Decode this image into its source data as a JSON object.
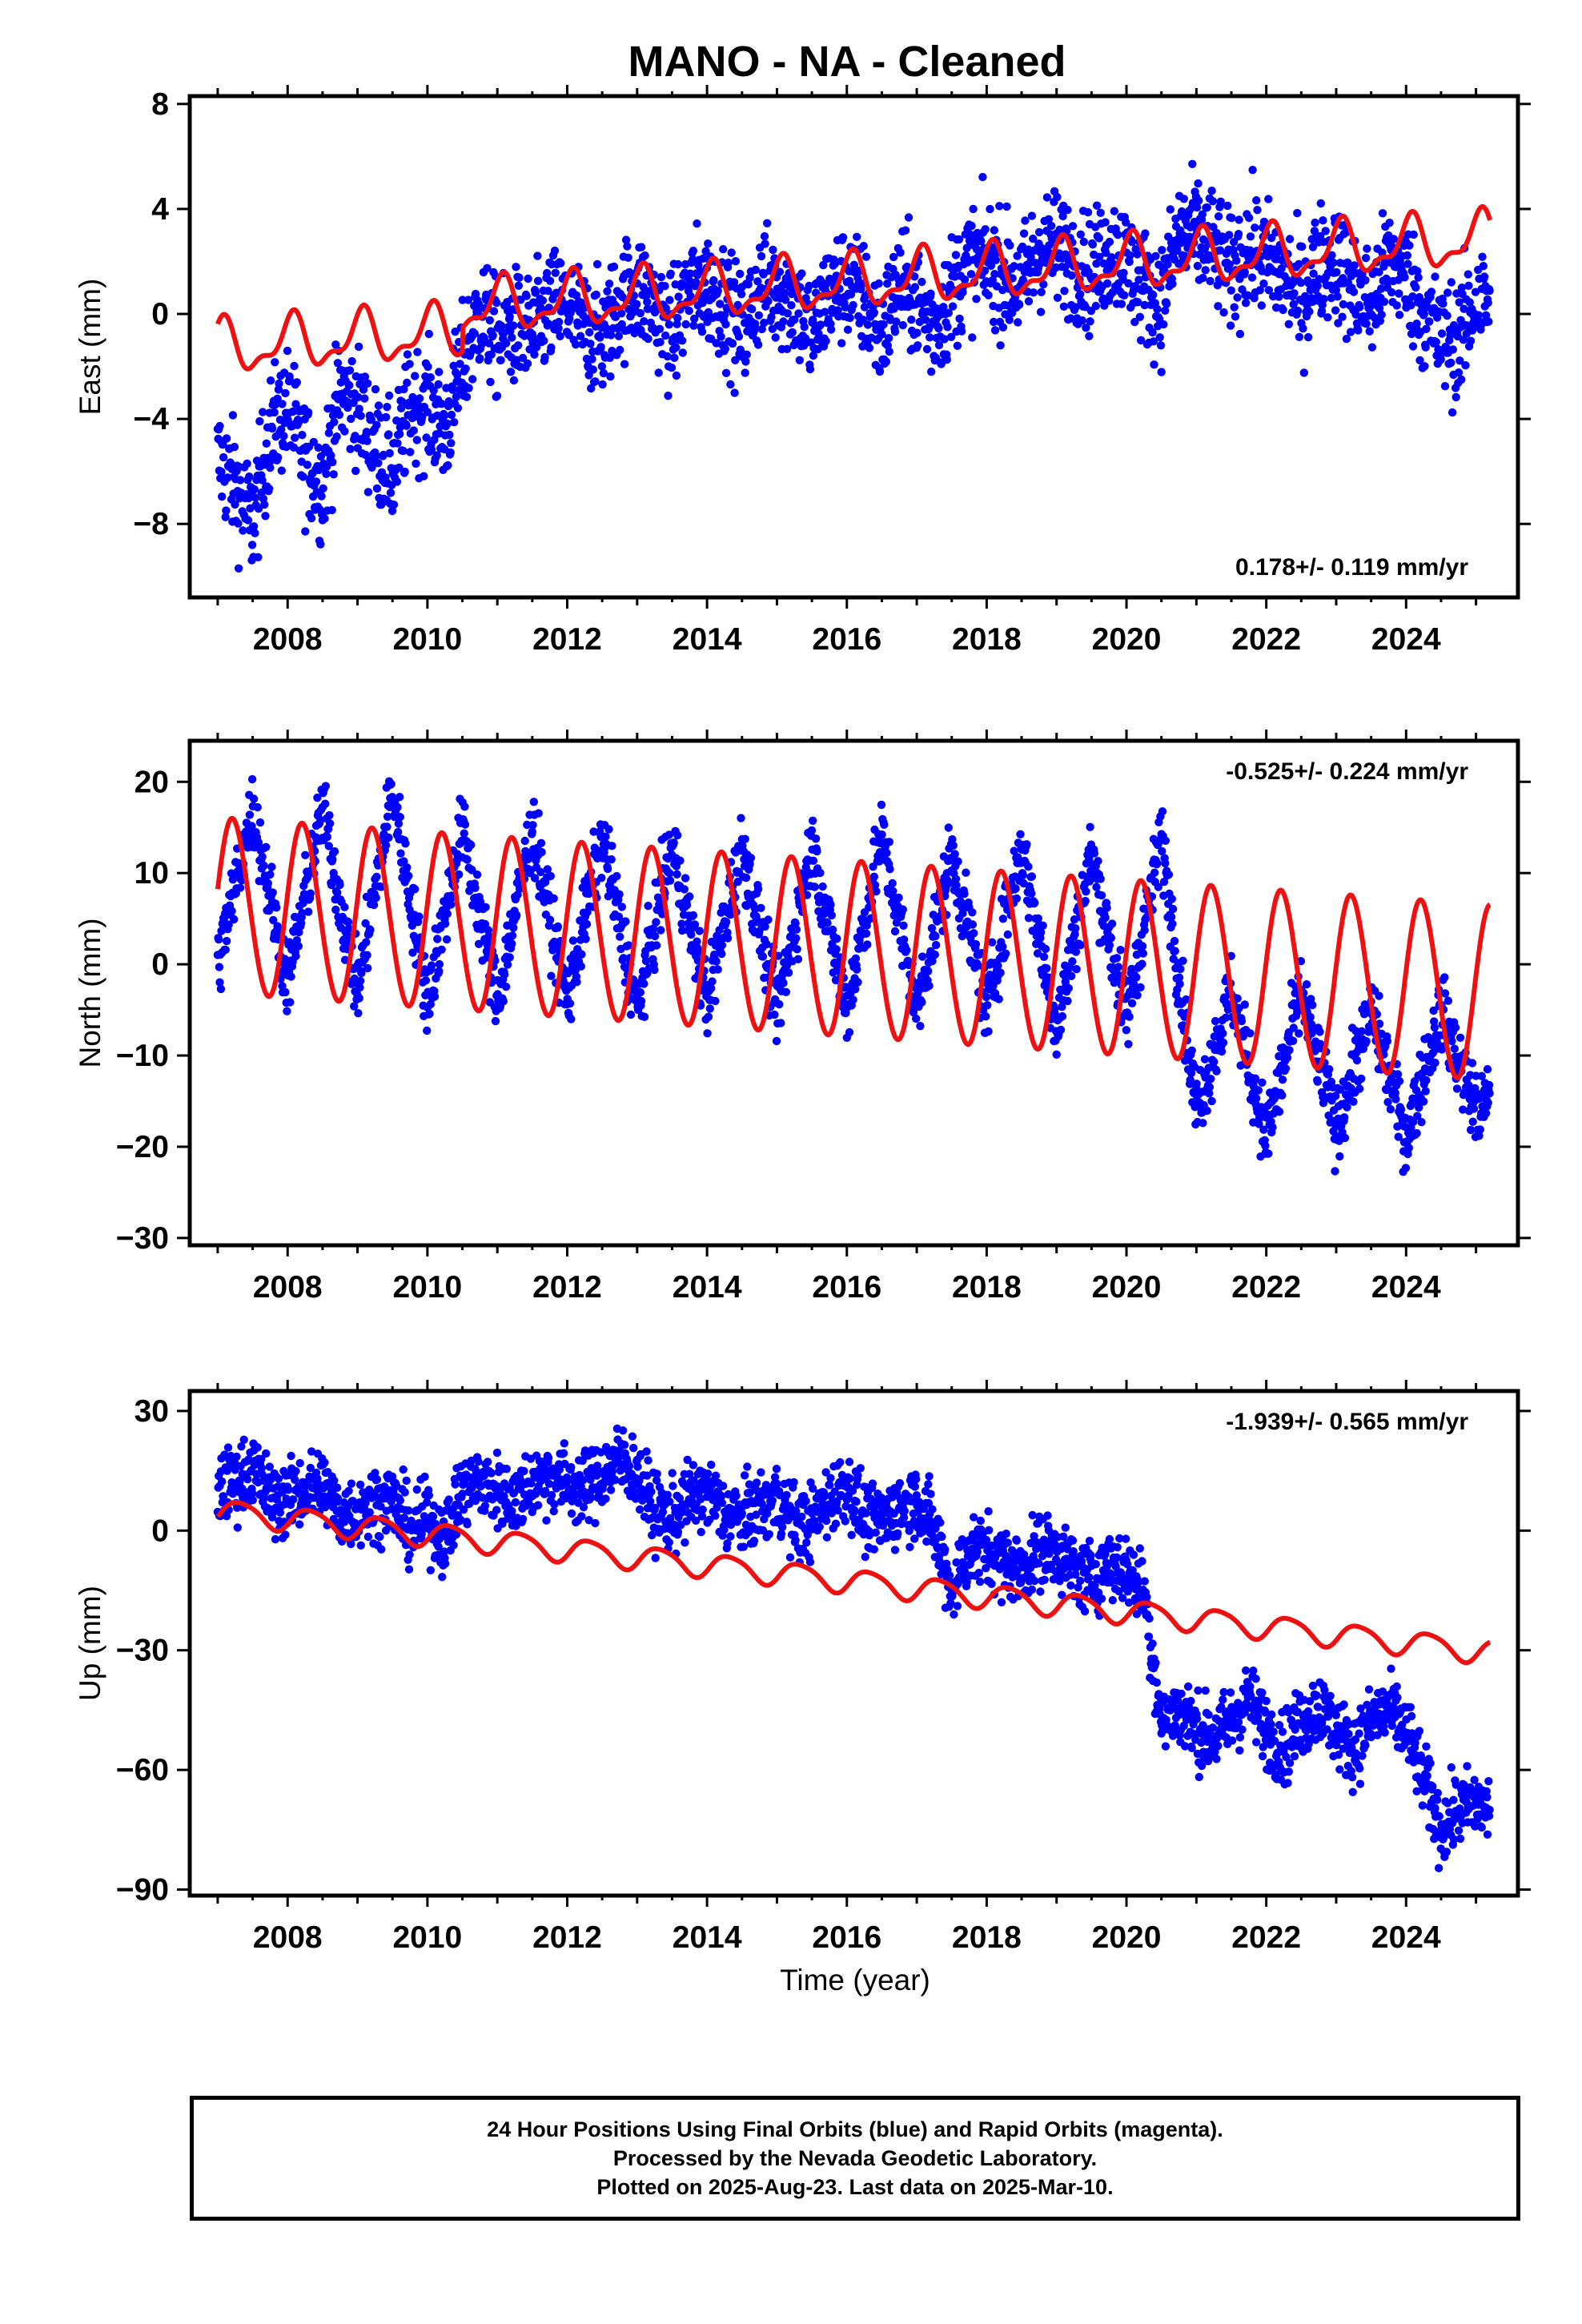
{
  "title": "MANO  - NA - Cleaned",
  "xlabel": "Time (year)",
  "colors": {
    "data": "#0000ff",
    "model": "#ee1111",
    "axis": "#000000"
  },
  "x_ticks": [
    2008,
    2010,
    2012,
    2014,
    2016,
    2018,
    2020,
    2022,
    2024
  ],
  "caption": [
    "24 Hour Positions Using Final Orbits (blue) and Rapid Orbits (magenta).",
    "Processed by the Nevada Geodetic Laboratory.",
    "Plotted on 2025-Aug-23. Last data on 2025-Mar-10."
  ],
  "chart_data": [
    {
      "type": "scatter",
      "panel": "east",
      "ylabel": "East (mm)",
      "ylim": [
        -10.8,
        8.3
      ],
      "xlim": [
        2006.6,
        2025.6
      ],
      "yticks": [
        -8,
        -4,
        0,
        4,
        8
      ],
      "rate_annotation": "0.178+/- 0.119 mm/yr",
      "annotation_position": "bottom-right",
      "series": [
        {
          "name": "Final Orbits (blue)",
          "type": "scatter",
          "x": [
            2007.0,
            2007.25,
            2007.5,
            2007.75,
            2008.0,
            2008.25,
            2008.5,
            2008.75,
            2009.0,
            2009.25,
            2009.5,
            2009.75,
            2010.0,
            2010.25,
            2010.5,
            2010.75,
            2011.0,
            2011.25,
            2011.5,
            2011.75,
            2012.0,
            2012.25,
            2012.5,
            2012.75,
            2013.0,
            2013.25,
            2013.5,
            2013.75,
            2014.0,
            2014.25,
            2014.5,
            2014.75,
            2015.0,
            2015.25,
            2015.5,
            2015.75,
            2016.0,
            2016.25,
            2016.5,
            2016.75,
            2017.0,
            2017.25,
            2017.5,
            2017.75,
            2018.0,
            2018.25,
            2018.5,
            2018.75,
            2019.0,
            2019.25,
            2019.5,
            2019.75,
            2020.0,
            2020.25,
            2020.5,
            2020.75,
            2021.0,
            2021.25,
            2021.5,
            2021.75,
            2022.0,
            2022.25,
            2022.5,
            2022.75,
            2023.0,
            2023.25,
            2023.5,
            2023.75,
            2024.0,
            2024.25,
            2024.5,
            2024.75,
            2025.0,
            2025.2
          ],
          "y": [
            -5.5,
            -6.5,
            -8.0,
            -4.5,
            -3.5,
            -5.5,
            -6.5,
            -3.0,
            -3.5,
            -5.0,
            -6.0,
            -3.5,
            -3.5,
            -4.5,
            -2.0,
            0.0,
            -1.0,
            -0.5,
            -0.8,
            0.2,
            0.3,
            -0.5,
            -1.0,
            0.5,
            1.0,
            0.3,
            -0.8,
            1.0,
            1.0,
            0.5,
            -0.8,
            1.0,
            1.0,
            0.5,
            -0.8,
            0.8,
            1.2,
            0.5,
            -0.8,
            1.2,
            0.5,
            -0.5,
            0.8,
            2.0,
            2.0,
            1.5,
            1.0,
            2.5,
            2.5,
            2.0,
            1.5,
            2.5,
            2.0,
            1.0,
            0.5,
            3.0,
            3.0,
            2.5,
            1.5,
            2.5,
            2.0,
            1.5,
            0.5,
            2.0,
            2.0,
            1.0,
            0.3,
            2.0,
            1.5,
            0.0,
            -1.0,
            -1.0,
            0.5,
            0.5
          ]
        },
        {
          "name": "Model fit",
          "type": "line",
          "model": {
            "t0": 2016,
            "offset": 0.3,
            "rate": 0.178,
            "annual": 0.9,
            "annual_phase": 1.2,
            "semiannual": 0.4,
            "semiannual_phase": 0.2,
            "steps": [
              {
                "t": 2010.5,
                "dy": 0.9
              }
            ]
          }
        }
      ]
    },
    {
      "type": "scatter",
      "panel": "north",
      "ylabel": "North (mm)",
      "ylim": [
        -30.8,
        24.5
      ],
      "xlim": [
        2006.6,
        2025.6
      ],
      "yticks": [
        -30,
        -20,
        -10,
        0,
        10,
        20
      ],
      "rate_annotation": "-0.525+/- 0.224 mm/yr",
      "annotation_position": "top-right",
      "series": [
        {
          "name": "Final Orbits (blue)",
          "type": "scatter",
          "x": [
            2007.0,
            2007.5,
            2008.0,
            2008.5,
            2009.0,
            2009.5,
            2010.0,
            2010.5,
            2011.0,
            2011.5,
            2012.0,
            2012.5,
            2013.0,
            2013.5,
            2014.0,
            2014.5,
            2015.0,
            2015.5,
            2016.0,
            2016.5,
            2017.0,
            2017.5,
            2018.0,
            2018.5,
            2019.0,
            2019.5,
            2020.0,
            2020.5,
            2021.0,
            2021.5,
            2022.0,
            2022.5,
            2023.0,
            2023.5,
            2024.0,
            2024.5,
            2025.0,
            2025.2
          ],
          "y": [
            0,
            17,
            -2,
            17,
            -3,
            19,
            -4,
            15,
            -4,
            15,
            -4,
            14,
            -5,
            13,
            -4,
            13,
            -5,
            13,
            -5,
            14,
            -5,
            12,
            -5,
            13,
            -7,
            12,
            -6,
            14,
            -16,
            -3,
            -19,
            -3,
            -18,
            -5,
            -19,
            -5,
            -16,
            -15
          ]
        },
        {
          "name": "Model fit",
          "type": "line",
          "model": {
            "t0": 2016,
            "offset": 1.6,
            "rate": -0.525,
            "annual": 9.6,
            "annual_phase": 0.2,
            "semiannual": 0.4,
            "semiannual_phase": 0.0,
            "steps": []
          }
        }
      ]
    },
    {
      "type": "scatter",
      "panel": "up",
      "ylabel": "Up (mm)",
      "ylim": [
        -91.5,
        35.0
      ],
      "xlim": [
        2006.6,
        2025.6
      ],
      "yticks": [
        -90,
        -60,
        -30,
        0,
        30
      ],
      "rate_annotation": "-1.939+/- 0.565 mm/yr",
      "annotation_position": "top-right",
      "series": [
        {
          "name": "Final Orbits (blue)",
          "type": "scatter",
          "x": [
            2007.0,
            2007.25,
            2007.5,
            2007.75,
            2008.0,
            2008.25,
            2008.5,
            2008.75,
            2009.0,
            2009.25,
            2009.5,
            2009.75,
            2010.0,
            2010.25,
            2010.5,
            2010.75,
            2011.0,
            2011.25,
            2011.5,
            2011.75,
            2012.0,
            2012.25,
            2012.5,
            2012.75,
            2013.0,
            2013.25,
            2013.5,
            2013.75,
            2014.0,
            2014.25,
            2014.5,
            2014.75,
            2015.0,
            2015.25,
            2015.5,
            2015.75,
            2016.0,
            2016.25,
            2016.5,
            2016.75,
            2017.0,
            2017.25,
            2017.5,
            2017.75,
            2018.0,
            2018.25,
            2018.5,
            2018.75,
            2019.0,
            2019.25,
            2019.5,
            2019.75,
            2020.0,
            2020.25,
            2020.5,
            2020.75,
            2021.0,
            2021.25,
            2021.5,
            2021.75,
            2022.0,
            2022.25,
            2022.5,
            2022.75,
            2023.0,
            2023.25,
            2023.5,
            2023.75,
            2024.0,
            2024.25,
            2024.5,
            2024.75,
            2025.0,
            2025.2
          ],
          "y": [
            10,
            12,
            16,
            8,
            8,
            10,
            12,
            4,
            5,
            7,
            8,
            0,
            3,
            -2,
            10,
            12,
            10,
            8,
            12,
            14,
            12,
            10,
            14,
            18,
            14,
            5,
            3,
            8,
            10,
            4,
            3,
            6,
            8,
            2,
            2,
            8,
            12,
            3,
            2,
            6,
            8,
            0,
            -15,
            -5,
            -5,
            -8,
            -10,
            -5,
            -5,
            -10,
            -12,
            -8,
            -10,
            -15,
            -48,
            -45,
            -50,
            -52,
            -48,
            -42,
            -50,
            -55,
            -48,
            -44,
            -50,
            -55,
            -48,
            -45,
            -50,
            -62,
            -75,
            -70,
            -68,
            -70
          ]
        },
        {
          "name": "Model fit",
          "type": "line",
          "model": {
            "t0": 2016,
            "offset": -12.5,
            "rate": -1.939,
            "annual": 3.0,
            "annual_phase": -0.5,
            "semiannual": 0.5,
            "semiannual_phase": 0.0,
            "steps": []
          }
        }
      ]
    }
  ]
}
